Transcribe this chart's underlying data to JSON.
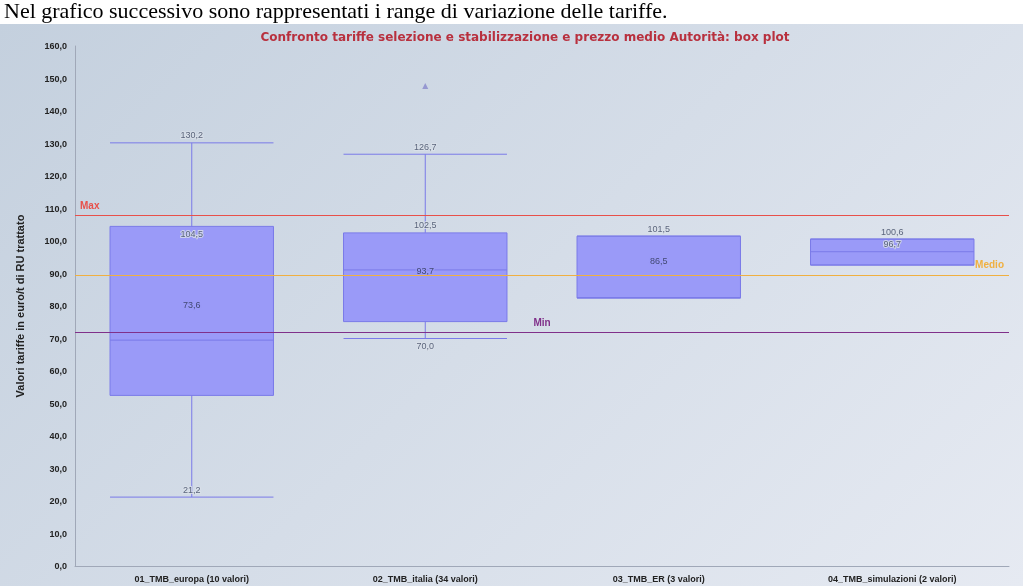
{
  "chart_data": {
    "type": "box",
    "title": "Confronto tariffe selezione e stabilizzazione e prezzo medio Autorità: box plot",
    "subtitle": "Nel grafico successivo sono rappresentati i range di variazione delle tariffe.",
    "ylabel": "Valori tariffe in euro/t di RU trattato",
    "categories": [
      "01_TMB_europa (10 valori)",
      "02_TMB_italia (34 valori)",
      "03_TMB_ER (3 valori)",
      "04_TMB_simulazioni (2 valori)"
    ],
    "color": "#9a9af8",
    "boxes": [
      {
        "low": 21.2,
        "q1": 52.5,
        "median": 69.5,
        "q3": 104.5,
        "high": 130.2
      },
      {
        "low": 70.0,
        "q1": 75.2,
        "median": 91.1,
        "q3": 102.5,
        "high": 126.7,
        "outliers": [
          147.7
        ]
      },
      {
        "low": 82.5,
        "q1": 82.5,
        "median": 82.5,
        "q3": 101.5,
        "high": 101.5
      },
      {
        "low": 92.6,
        "q1": 92.6,
        "median": 96.7,
        "q3": 100.6,
        "high": 100.6
      }
    ],
    "ylim": [
      0,
      160
    ],
    "yticks": [
      {
        "value": 0,
        "label": "0,0"
      },
      {
        "value": 10,
        "label": "10,0"
      },
      {
        "value": 20,
        "label": "20,0"
      },
      {
        "value": 30,
        "label": "30,0"
      },
      {
        "value": 40,
        "label": "40,0"
      },
      {
        "value": 50,
        "label": "50,0"
      },
      {
        "value": 60,
        "label": "60,0"
      },
      {
        "value": 70,
        "label": "70,0"
      },
      {
        "value": 80,
        "label": "80,0"
      },
      {
        "value": 90,
        "label": "90,0"
      },
      {
        "value": 100,
        "label": "100,0"
      },
      {
        "value": 110,
        "label": "110,0"
      },
      {
        "value": 120,
        "label": "120,0"
      },
      {
        "value": 130,
        "label": "130,0"
      },
      {
        "value": 140,
        "label": "140,0"
      },
      {
        "value": 150,
        "label": "150,0"
      },
      {
        "value": 160,
        "label": "160,0"
      }
    ],
    "ref_lines": [
      {
        "axis": "y",
        "value": 108.0,
        "label": "Max",
        "color": "#e8504a"
      },
      {
        "axis": "y",
        "value": 89.6,
        "label": "Medio",
        "color": "#f0b040"
      },
      {
        "axis": "y",
        "value": 71.9,
        "label": "Min",
        "color": "#80308a"
      }
    ],
    "annotations": [
      "73,6",
      "93,7",
      "86,5",
      {
        "text": "130,2",
        "x": "01_TMB_europa (10 valori)",
        "y": 130.2
      },
      {
        "text": "104,5",
        "x": "01_TMB_europa (10 valori)",
        "y": 104.5
      },
      {
        "text": "21,2",
        "x": "01_TMB_europa (10 valori)",
        "y": 21.2
      },
      {
        "text": "126,7",
        "x": "02_TMB_italia (34 valori)",
        "y": 126.7
      },
      {
        "text": "102,5",
        "x": "02_TMB_italia (34 valori)",
        "y": 102.5
      },
      {
        "text": "70,0",
        "x": "02_TMB_italia (34 valori)",
        "y": 70.0
      },
      {
        "text": "101,5",
        "x": "03_TMB_ER (3 valori)",
        "y": 101.5
      },
      {
        "text": "100,6",
        "x": "04_TMB_simulazioni (2 valori)",
        "y": 100.6
      },
      {
        "text": "96,7",
        "x": "04_TMB_simulazioni (2 valori)",
        "y": 96.7
      }
    ],
    "grid": false
  }
}
